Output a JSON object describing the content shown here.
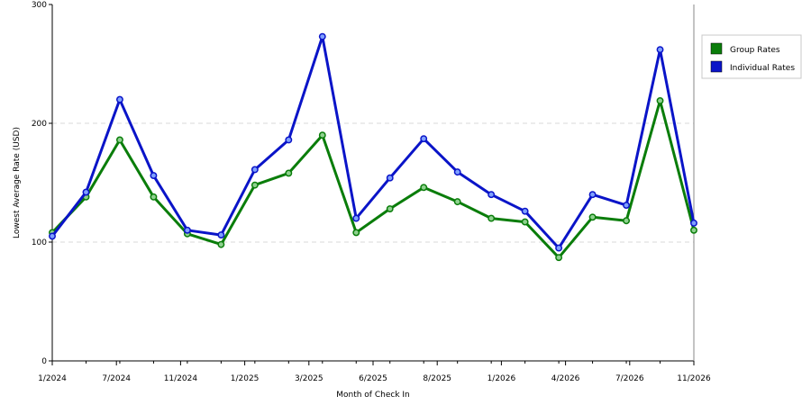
{
  "chart_data": {
    "type": "line",
    "xlabel": "Month of Check In",
    "ylabel": "Lowest Average Rate (USD)",
    "ylim": [
      0,
      300
    ],
    "yticks": [
      0,
      100,
      200,
      300
    ],
    "x_tick_labels": [
      "1/2024",
      "7/2024",
      "11/2024",
      "1/2025",
      "3/2025",
      "6/2025",
      "8/2025",
      "1/2026",
      "4/2026",
      "7/2026",
      "11/2026"
    ],
    "legend_position": "right",
    "grid": "horizontal dashed",
    "series": [
      {
        "name": "Group Rates",
        "color": "#0a7d0a",
        "values": [
          108,
          138,
          186,
          138,
          107,
          98,
          148,
          158,
          190,
          108,
          128,
          146,
          134,
          120,
          117,
          87,
          121,
          118,
          219,
          110
        ]
      },
      {
        "name": "Individual Rates",
        "color": "#0a14c8",
        "values": [
          105,
          142,
          220,
          156,
          110,
          106,
          161,
          186,
          273,
          120,
          154,
          187,
          159,
          140,
          126,
          95,
          140,
          131,
          262,
          116
        ]
      }
    ]
  }
}
